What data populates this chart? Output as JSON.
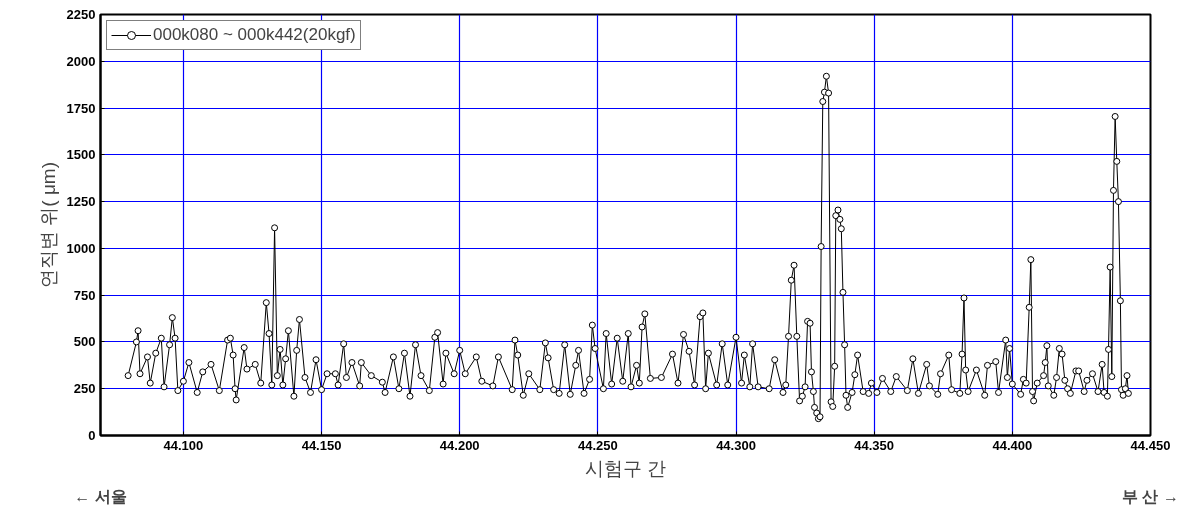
{
  "chart_data": {
    "type": "line",
    "xlabel": "시험구 간",
    "ylabel": "연직변 위( μm)",
    "annotations": [
      "← 서울",
      "부 산 →"
    ],
    "xlim": [
      44.07,
      44.45
    ],
    "xticks": [
      {
        "value": 44.1,
        "label": "44.100"
      },
      {
        "value": 44.15,
        "label": "44.150"
      },
      {
        "value": 44.2,
        "label": "44.200"
      },
      {
        "value": 44.25,
        "label": "44.250"
      },
      {
        "value": 44.3,
        "label": "44.300"
      },
      {
        "value": 44.35,
        "label": "44.350"
      },
      {
        "value": 44.4,
        "label": "44.400"
      },
      {
        "value": 44.45,
        "label": "44.450"
      }
    ],
    "ylim": [
      0,
      2250
    ],
    "yticks": [
      0,
      250,
      500,
      750,
      1000,
      1250,
      1500,
      1750,
      2000,
      2250
    ],
    "grid": true,
    "legend": "top left",
    "marker": "circle",
    "line_style": "solid",
    "series": [
      {
        "name": "000k080 ~ 000k442(20kgf)",
        "color": "#000000",
        "x": [
          44.08,
          44.083,
          44.0836,
          44.0843,
          44.087,
          44.088,
          44.09,
          44.092,
          44.093,
          44.095,
          44.096,
          44.097,
          44.098,
          44.1,
          44.102,
          44.105,
          44.107,
          44.11,
          44.113,
          44.116,
          44.117,
          44.118,
          44.1187,
          44.1191,
          44.122,
          44.123,
          44.126,
          44.128,
          44.13,
          44.131,
          44.132,
          44.133,
          44.134,
          44.135,
          44.136,
          44.137,
          44.138,
          44.14,
          44.141,
          44.142,
          44.144,
          44.146,
          44.148,
          44.15,
          44.152,
          44.155,
          44.156,
          44.158,
          44.159,
          44.161,
          44.1638,
          44.1644,
          44.168,
          44.172,
          44.173,
          44.176,
          44.178,
          44.18,
          44.182,
          44.184,
          44.186,
          44.189,
          44.191,
          44.192,
          44.194,
          44.195,
          44.198,
          44.2,
          44.202,
          44.206,
          44.208,
          44.212,
          44.214,
          44.219,
          44.22,
          44.221,
          44.223,
          44.225,
          44.229,
          44.231,
          44.232,
          44.234,
          44.236,
          44.238,
          44.24,
          44.242,
          44.243,
          44.245,
          44.247,
          44.248,
          44.249,
          44.252,
          44.253,
          44.255,
          44.257,
          44.259,
          44.261,
          44.262,
          44.264,
          44.265,
          44.266,
          44.267,
          44.269,
          44.273,
          44.277,
          44.279,
          44.281,
          44.283,
          44.285,
          44.287,
          44.288,
          44.289,
          44.29,
          44.293,
          44.295,
          44.297,
          44.3,
          44.302,
          44.303,
          44.305,
          44.306,
          44.308,
          44.312,
          44.314,
          44.317,
          44.318,
          44.319,
          44.32,
          44.321,
          44.322,
          44.323,
          44.324,
          44.325,
          44.3259,
          44.3268,
          44.3273,
          44.328,
          44.3284,
          44.3292,
          44.3298,
          44.3304,
          44.3308,
          44.3314,
          44.332,
          44.3327,
          44.3335,
          44.3344,
          44.335,
          44.3357,
          44.3361,
          44.3369,
          44.3376,
          44.3381,
          44.3387,
          44.3393,
          44.3398,
          44.3404,
          44.342,
          44.343,
          44.344,
          44.346,
          44.348,
          44.349,
          44.351,
          44.353,
          44.356,
          44.358,
          44.362,
          44.364,
          44.366,
          44.369,
          44.37,
          44.373,
          44.374,
          44.377,
          44.378,
          44.381,
          44.3818,
          44.3825,
          44.3831,
          44.384,
          44.387,
          44.39,
          44.391,
          44.394,
          44.395,
          44.3976,
          44.3982,
          44.399,
          44.4,
          44.403,
          44.404,
          44.405,
          44.4061,
          44.4067,
          44.4073,
          44.4077,
          44.409,
          44.4113,
          44.4119,
          44.4125,
          44.413,
          44.415,
          44.416,
          44.417,
          44.418,
          44.419,
          44.42,
          44.421,
          44.423,
          44.424,
          44.426,
          44.427,
          44.429,
          44.431,
          44.4325,
          44.4332,
          44.4344,
          44.4348,
          44.4354,
          44.436,
          44.4366,
          44.4372,
          44.4378,
          44.4384,
          44.4391,
          44.4395,
          44.4401,
          44.4409,
          44.4415,
          44.442
        ],
        "values": [
          320,
          500,
          560,
          330,
          420,
          280,
          440,
          520,
          260,
          485,
          630,
          520,
          240,
          290,
          390,
          230,
          340,
          380,
          240,
          510,
          520,
          430,
          250,
          190,
          470,
          355,
          380,
          280,
          710,
          545,
          270,
          1110,
          320,
          460,
          270,
          410,
          560,
          210,
          455,
          620,
          310,
          230,
          405,
          245,
          330,
          330,
          270,
          490,
          310,
          390,
          265,
          390,
          320,
          285,
          230,
          420,
          250,
          440,
          210,
          485,
          320,
          240,
          525,
          550,
          275,
          440,
          330,
          455,
          330,
          420,
          290,
          265,
          420,
          245,
          510,
          430,
          215,
          330,
          245,
          495,
          415,
          245,
          225,
          485,
          220,
          375,
          455,
          225,
          300,
          590,
          465,
          250,
          545,
          275,
          520,
          290,
          545,
          260,
          375,
          280,
          580,
          650,
          305,
          310,
          435,
          280,
          540,
          450,
          270,
          635,
          655,
          250,
          440,
          270,
          490,
          270,
          525,
          280,
          430,
          260,
          490,
          260,
          250,
          405,
          230,
          270,
          530,
          830,
          910,
          530,
          185,
          210,
          260,
          610,
          600,
          340,
          235,
          150,
          120,
          90,
          100,
          1010,
          1785,
          1835,
          1920,
          1830,
          180,
          155,
          370,
          1175,
          1205,
          1155,
          1105,
          765,
          485,
          215,
          150,
          230,
          325,
          430,
          235,
          225,
          280,
          230,
          305,
          235,
          315,
          240,
          410,
          225,
          380,
          265,
          220,
          330,
          430,
          245,
          225,
          435,
          735,
          350,
          235,
          350,
          215,
          375,
          395,
          230,
          510,
          310,
          465,
          275,
          220,
          300,
          280,
          685,
          940,
          235,
          185,
          280,
          320,
          390,
          480,
          265,
          215,
          310,
          465,
          435,
          295,
          250,
          225,
          345,
          345,
          235,
          295,
          330,
          235,
          380,
          230,
          210,
          460,
          900,
          315,
          1310,
          1705,
          1465,
          1250,
          720,
          245,
          215,
          250,
          320,
          225
        ]
      }
    ]
  }
}
